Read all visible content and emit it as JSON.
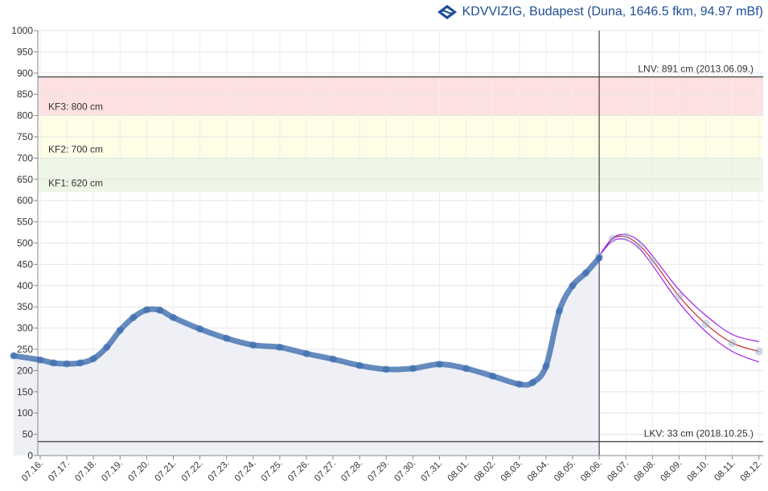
{
  "header": {
    "title": "KDVVIZIG, Budapest (Duna, 1646.5 fkm, 94.97 mBf)",
    "logo_icon": "kdvvizig-logo-icon"
  },
  "chart_data": {
    "type": "line",
    "title": "KDVVIZIG, Budapest (Duna, 1646.5 fkm, 94.97 mBf)",
    "xlabel": "",
    "ylabel": "",
    "ylim": [
      0,
      1000
    ],
    "yticks": [
      0,
      50,
      100,
      150,
      200,
      250,
      300,
      350,
      400,
      450,
      500,
      550,
      600,
      650,
      700,
      750,
      800,
      850,
      900,
      950,
      1000
    ],
    "x_labels": [
      "07.16.",
      "07.17.",
      "07.18.",
      "07.19.",
      "07.20.",
      "07.21.",
      "07.22.",
      "07.23.",
      "07.24.",
      "07.25.",
      "07.26.",
      "07.27.",
      "07.28.",
      "07.29.",
      "07.30.",
      "07.31.",
      "08.01.",
      "08.02.",
      "08.03.",
      "08.04.",
      "08.05.",
      "08.06.",
      "08.07.",
      "08.08.",
      "08.09.",
      "08.10.",
      "08.11.",
      "08.12."
    ],
    "grid": true,
    "bands": [
      {
        "label": "KF3: 800 cm",
        "from": 800,
        "to": 891,
        "color": "#fde0e0"
      },
      {
        "label": "KF2: 700 cm",
        "from": 700,
        "to": 800,
        "color": "#fefde6"
      },
      {
        "label": "KF1: 620 cm",
        "from": 620,
        "to": 700,
        "color": "#eef6e6"
      }
    ],
    "reference_lines": [
      {
        "label": "LNV: 891 cm (2013.06.09.)",
        "value": 891,
        "color": "#555555"
      },
      {
        "label": "LKV: 33 cm (2018.10.25.)",
        "value": 33,
        "color": "#555555"
      }
    ],
    "current_time_marker": "08.06.",
    "series": [
      {
        "kind": "measured",
        "color": "#3366aa",
        "points": [
          [
            "07.15.",
            235
          ],
          [
            "07.16.",
            225
          ],
          [
            "07.16.5",
            218
          ],
          [
            "07.17.",
            216
          ],
          [
            "07.17.5",
            218
          ],
          [
            "07.18.",
            228
          ],
          [
            "07.18.5",
            255
          ],
          [
            "07.19.",
            295
          ],
          [
            "07.19.5",
            325
          ],
          [
            "07.20.",
            343
          ],
          [
            "07.20.5",
            342
          ],
          [
            "07.21.",
            325
          ],
          [
            "07.22.",
            298
          ],
          [
            "07.23.",
            276
          ],
          [
            "07.24.",
            260
          ],
          [
            "07.25.",
            255
          ],
          [
            "07.26.",
            240
          ],
          [
            "07.27.",
            227
          ],
          [
            "07.28.",
            212
          ],
          [
            "07.29.",
            203
          ],
          [
            "07.30.",
            205
          ],
          [
            "07.31.",
            215
          ],
          [
            "08.01.",
            205
          ],
          [
            "08.02.",
            187
          ],
          [
            "08.03.",
            168
          ],
          [
            "08.03.5",
            172
          ],
          [
            "08.04.",
            210
          ],
          [
            "08.04.5",
            340
          ],
          [
            "08.05.",
            400
          ],
          [
            "08.05.5",
            430
          ],
          [
            "08.06.",
            465
          ]
        ]
      },
      {
        "kind": "forecast",
        "color": "#c03030",
        "points": [
          [
            "08.06.",
            470
          ],
          [
            "08.06.5",
            510
          ],
          [
            "08.07.",
            515
          ],
          [
            "08.07.5",
            495
          ],
          [
            "08.08.",
            460
          ],
          [
            "08.09.",
            375
          ],
          [
            "08.10.",
            310
          ],
          [
            "08.11.",
            265
          ],
          [
            "08.12.",
            245
          ]
        ]
      },
      {
        "kind": "forecast-upper",
        "color": "#a020f0",
        "points": [
          [
            "08.06.",
            470
          ],
          [
            "08.06.5",
            512
          ],
          [
            "08.07.",
            520
          ],
          [
            "08.07.5",
            505
          ],
          [
            "08.08.",
            470
          ],
          [
            "08.09.",
            390
          ],
          [
            "08.10.",
            330
          ],
          [
            "08.11.",
            285
          ],
          [
            "08.12.",
            268
          ]
        ]
      },
      {
        "kind": "forecast-lower",
        "color": "#a020f0",
        "points": [
          [
            "08.06.",
            470
          ],
          [
            "08.06.5",
            505
          ],
          [
            "08.07.",
            508
          ],
          [
            "08.07.5",
            488
          ],
          [
            "08.08.",
            448
          ],
          [
            "08.09.",
            360
          ],
          [
            "08.10.",
            292
          ],
          [
            "08.11.",
            245
          ],
          [
            "08.12.",
            220
          ]
        ]
      }
    ]
  }
}
